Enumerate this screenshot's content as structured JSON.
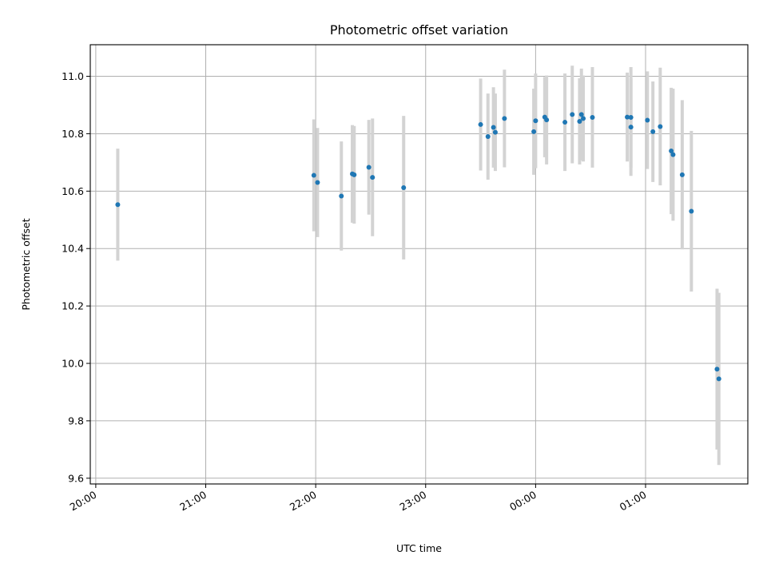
{
  "chart_data": {
    "type": "scatter",
    "title": "Photometric offset variation",
    "xlabel": "UTC time",
    "ylabel": "Photometric offset",
    "x_ticks": [
      "20:00",
      "21:00",
      "22:00",
      "23:00",
      "00:00",
      "01:00"
    ],
    "x_tick_hours": [
      20,
      21,
      22,
      23,
      24,
      25
    ],
    "x_range_hours": [
      19.95,
      25.93
    ],
    "y_ticks": [
      "9.6",
      "9.8",
      "10.0",
      "10.2",
      "10.4",
      "10.6",
      "10.8",
      "11.0"
    ],
    "y_tick_values": [
      9.6,
      9.8,
      10.0,
      10.2,
      10.4,
      10.6,
      10.8,
      11.0
    ],
    "ylim": [
      9.58,
      11.11
    ],
    "grid": true,
    "colors": {
      "point": "#1f77b4",
      "errorbar": "#d3d3d3",
      "grid": "#b0b0b0"
    },
    "points": [
      {
        "time": "20:12",
        "y": 10.553,
        "err": 0.195
      },
      {
        "time": "21:59",
        "y": 10.655,
        "err": 0.195
      },
      {
        "time": "22:01",
        "y": 10.63,
        "err": 0.19
      },
      {
        "time": "22:14",
        "y": 10.583,
        "err": 0.19
      },
      {
        "time": "22:20",
        "y": 10.66,
        "err": 0.17
      },
      {
        "time": "22:21",
        "y": 10.657,
        "err": 0.17
      },
      {
        "time": "22:29",
        "y": 10.683,
        "err": 0.165
      },
      {
        "time": "22:31",
        "y": 10.648,
        "err": 0.205
      },
      {
        "time": "22:48",
        "y": 10.612,
        "err": 0.25
      },
      {
        "time": "23:30",
        "y": 10.832,
        "err": 0.16
      },
      {
        "time": "23:34",
        "y": 10.79,
        "err": 0.15
      },
      {
        "time": "23:37",
        "y": 10.822,
        "err": 0.14
      },
      {
        "time": "23:38",
        "y": 10.805,
        "err": 0.135
      },
      {
        "time": "23:43",
        "y": 10.853,
        "err": 0.17
      },
      {
        "time": "23:59",
        "y": 10.807,
        "err": 0.15
      },
      {
        "time": "00:00",
        "y": 10.845,
        "err": 0.165
      },
      {
        "time": "00:05",
        "y": 10.858,
        "err": 0.14
      },
      {
        "time": "00:06",
        "y": 10.848,
        "err": 0.155
      },
      {
        "time": "00:16",
        "y": 10.84,
        "err": 0.17
      },
      {
        "time": "00:20",
        "y": 10.867,
        "err": 0.17
      },
      {
        "time": "00:24",
        "y": 10.843,
        "err": 0.15
      },
      {
        "time": "00:25",
        "y": 10.867,
        "err": 0.16
      },
      {
        "time": "00:26",
        "y": 10.853,
        "err": 0.15
      },
      {
        "time": "00:31",
        "y": 10.857,
        "err": 0.175
      },
      {
        "time": "00:50",
        "y": 10.858,
        "err": 0.155
      },
      {
        "time": "00:52",
        "y": 10.823,
        "err": 0.17
      },
      {
        "time": "00:52",
        "y": 10.857,
        "err": 0.175
      },
      {
        "time": "01:01",
        "y": 10.847,
        "err": 0.17
      },
      {
        "time": "01:04",
        "y": 10.807,
        "err": 0.175
      },
      {
        "time": "01:08",
        "y": 10.825,
        "err": 0.205
      },
      {
        "time": "01:14",
        "y": 10.74,
        "err": 0.22
      },
      {
        "time": "01:15",
        "y": 10.727,
        "err": 0.23
      },
      {
        "time": "01:20",
        "y": 10.657,
        "err": 0.26
      },
      {
        "time": "01:25",
        "y": 10.53,
        "err": 0.28
      },
      {
        "time": "01:39",
        "y": 9.98,
        "err": 0.28
      },
      {
        "time": "01:40",
        "y": 9.946,
        "err": 0.3
      }
    ]
  }
}
